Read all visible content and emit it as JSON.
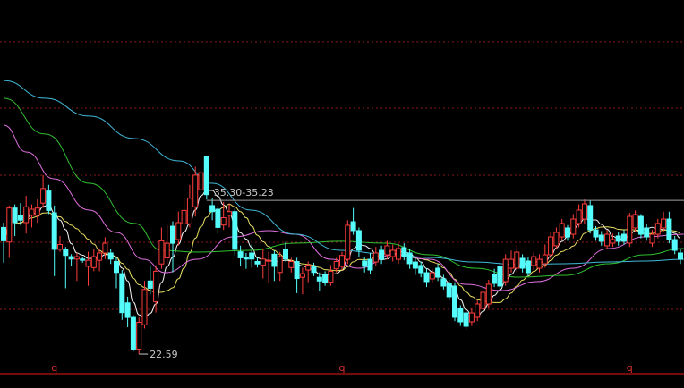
{
  "chart_data": {
    "type": "candlestick",
    "title": "",
    "xlabel": "",
    "ylabel": "",
    "ylim": [
      19.8,
      51.7
    ],
    "grid": true,
    "gridlines": [
      48.25,
      42.81,
      37.29,
      31.78,
      26.27
    ],
    "baseline": 20.98,
    "colors": {
      "up": "#ff3c3c",
      "down": "#54fcfc",
      "grid": "#8a1a1a",
      "baseline": "#9a1010",
      "label": "#c8c8c8",
      "marker": "#e03030"
    },
    "candles_format": [
      "open",
      "close",
      "high",
      "low"
    ],
    "candles": [
      [
        33.0,
        31.9,
        33.4,
        30.1
      ],
      [
        31.8,
        34.6,
        34.8,
        30.5
      ],
      [
        34.6,
        33.4,
        34.9,
        32.3
      ],
      [
        34.0,
        33.6,
        35.0,
        33.2
      ],
      [
        33.4,
        34.7,
        35.6,
        32.5
      ],
      [
        34.0,
        34.5,
        34.9,
        33.0
      ],
      [
        34.0,
        34.6,
        35.3,
        33.4
      ],
      [
        35.0,
        36.2,
        37.3,
        34.6
      ],
      [
        36.0,
        34.4,
        36.5,
        34.1
      ],
      [
        34.2,
        31.2,
        34.8,
        29.0
      ],
      [
        31.2,
        31.6,
        32.3,
        31.0
      ],
      [
        31.2,
        30.7,
        31.4,
        28.0
      ],
      [
        30.6,
        30.4,
        30.8,
        29.8
      ],
      [
        30.4,
        30.6,
        30.9,
        28.6
      ],
      [
        30.4,
        30.3,
        30.6,
        30.1
      ],
      [
        29.8,
        30.3,
        31.0,
        28.2
      ],
      [
        29.7,
        30.6,
        31.2,
        29.4
      ],
      [
        30.3,
        30.9,
        31.2,
        29.4
      ],
      [
        30.9,
        31.7,
        32.2,
        30.4
      ],
      [
        30.9,
        30.4,
        31.2,
        30.0
      ],
      [
        30.2,
        29.3,
        30.6,
        28.0
      ],
      [
        29.2,
        26.0,
        29.5,
        25.4
      ],
      [
        26.8,
        25.6,
        27.3,
        24.8
      ],
      [
        25.6,
        23.0,
        25.8,
        22.8
      ],
      [
        23.0,
        25.2,
        25.6,
        22.59
      ],
      [
        25.0,
        27.9,
        28.6,
        24.7
      ],
      [
        28.6,
        28.0,
        29.9,
        27.5
      ],
      [
        26.9,
        29.4,
        29.9,
        26.0
      ],
      [
        30.0,
        31.9,
        33.0,
        29.6
      ],
      [
        30.5,
        31.7,
        33.2,
        30.0
      ],
      [
        33.1,
        31.7,
        33.5,
        29.3
      ],
      [
        32.0,
        33.4,
        34.3,
        31.5
      ],
      [
        33.3,
        34.4,
        35.5,
        32.7
      ],
      [
        33.3,
        35.4,
        36.5,
        33.0
      ],
      [
        34.7,
        37.3,
        38.0,
        33.9
      ],
      [
        36.1,
        37.5,
        37.9,
        35.6
      ],
      [
        38.8,
        35.7,
        38.9,
        35.3
      ],
      [
        34.8,
        34.3,
        35.4,
        33.6
      ],
      [
        34.5,
        33.0,
        34.8,
        32.5
      ],
      [
        33.2,
        33.8,
        35.1,
        32.8
      ],
      [
        34.0,
        34.3,
        35.0,
        33.0
      ],
      [
        34.3,
        31.2,
        34.6,
        30.7
      ],
      [
        31.0,
        30.5,
        31.5,
        29.8
      ],
      [
        30.5,
        30.4,
        30.9,
        29.6
      ],
      [
        30.9,
        30.4,
        31.6,
        29.7
      ],
      [
        30.2,
        30.0,
        30.5,
        29.7
      ],
      [
        29.9,
        30.4,
        31.2,
        28.8
      ],
      [
        30.3,
        30.3,
        31.0,
        28.4
      ],
      [
        30.8,
        29.8,
        31.1,
        28.6
      ],
      [
        29.3,
        30.6,
        31.0,
        28.6
      ],
      [
        31.2,
        30.4,
        31.8,
        30.2
      ],
      [
        29.7,
        30.2,
        30.5,
        29.3
      ],
      [
        30.2,
        28.8,
        30.5,
        27.6
      ],
      [
        28.9,
        29.2,
        29.7,
        27.5
      ],
      [
        29.5,
        29.9,
        30.2,
        28.5
      ],
      [
        29.8,
        29.3,
        30.1,
        29.0
      ],
      [
        28.9,
        28.6,
        29.3,
        27.8
      ],
      [
        29.1,
        28.5,
        29.4,
        28.2
      ],
      [
        28.5,
        29.4,
        29.9,
        28.2
      ],
      [
        29.6,
        30.2,
        30.5,
        29.3
      ],
      [
        29.8,
        30.7,
        31.0,
        29.5
      ],
      [
        30.38,
        33.18,
        33.6,
        30.0
      ],
      [
        33.47,
        32.74,
        34.6,
        32.4
      ],
      [
        32.74,
        31.12,
        33.0,
        30.6
      ],
      [
        30.24,
        29.8,
        30.6,
        29.3
      ],
      [
        30.38,
        29.5,
        30.9,
        29.2
      ],
      [
        30.16,
        30.9,
        31.4,
        29.8
      ],
      [
        31.12,
        30.38,
        31.5,
        30.0
      ],
      [
        30.75,
        31.49,
        31.9,
        30.4
      ],
      [
        30.6,
        31.12,
        31.6,
        30.2
      ],
      [
        30.38,
        31.27,
        31.7,
        30.0
      ],
      [
        31.34,
        30.6,
        31.7,
        30.3
      ],
      [
        30.9,
        30.02,
        31.2,
        29.6
      ],
      [
        30.16,
        29.65,
        30.5,
        29.1
      ],
      [
        29.87,
        29.28,
        30.2,
        28.9
      ],
      [
        29.28,
        28.55,
        29.6,
        28.1
      ],
      [
        28.77,
        29.28,
        29.6,
        28.4
      ],
      [
        29.65,
        28.91,
        30.0,
        28.6
      ],
      [
        28.77,
        28.18,
        29.1,
        27.9
      ],
      [
        28.4,
        27.3,
        28.7,
        27.0
      ],
      [
        28.18,
        25.61,
        28.5,
        25.3
      ],
      [
        26.34,
        25.24,
        26.6,
        24.9
      ],
      [
        25.97,
        24.87,
        26.2,
        24.6
      ],
      [
        25.24,
        25.97,
        26.4,
        24.9
      ],
      [
        25.61,
        26.71,
        27.0,
        25.3
      ],
      [
        26.34,
        27.67,
        28.0,
        26.0
      ],
      [
        26.71,
        28.33,
        28.7,
        26.4
      ],
      [
        29.13,
        28.4,
        29.6,
        28.1
      ],
      [
        29.8,
        28.18,
        30.2,
        27.8
      ],
      [
        28.55,
        30.38,
        30.8,
        28.2
      ],
      [
        29.65,
        30.38,
        31.1,
        29.3
      ],
      [
        29.65,
        30.97,
        31.5,
        29.3
      ],
      [
        30.46,
        29.65,
        30.8,
        29.3
      ],
      [
        30.24,
        29.28,
        30.6,
        29.0
      ],
      [
        29.87,
        30.6,
        31.0,
        29.5
      ],
      [
        29.65,
        30.38,
        30.8,
        29.3
      ],
      [
        30.02,
        30.75,
        31.6,
        29.7
      ],
      [
        30.75,
        32.22,
        32.6,
        30.4
      ],
      [
        31.49,
        32.59,
        33.0,
        31.2
      ],
      [
        32.22,
        33.33,
        33.7,
        31.9
      ],
      [
        32.96,
        32.22,
        33.2,
        31.9
      ],
      [
        32.44,
        33.69,
        34.1,
        32.1
      ],
      [
        33.33,
        34.43,
        34.9,
        33.0
      ],
      [
        33.69,
        34.94,
        35.3,
        33.3
      ],
      [
        34.8,
        32.81,
        35.2,
        32.5
      ],
      [
        32.81,
        32.22,
        33.1,
        31.9
      ],
      [
        32.37,
        31.86,
        32.7,
        31.5
      ],
      [
        31.49,
        32.44,
        32.8,
        31.2
      ],
      [
        31.71,
        32.0,
        32.5,
        31.4
      ],
      [
        32.3,
        31.86,
        32.6,
        31.5
      ],
      [
        32.44,
        31.86,
        32.8,
        31.6
      ],
      [
        31.71,
        33.91,
        34.2,
        31.4
      ],
      [
        32.96,
        34.06,
        34.4,
        32.6
      ],
      [
        33.91,
        32.44,
        34.1,
        32.1
      ],
      [
        32.96,
        32.22,
        33.3,
        31.9
      ],
      [
        31.71,
        32.44,
        32.8,
        31.4
      ],
      [
        32.44,
        33.33,
        33.7,
        32.1
      ],
      [
        32.96,
        33.69,
        34.3,
        32.6
      ],
      [
        33.69,
        32.0,
        34.3,
        31.7
      ],
      [
        32.0,
        31.12,
        32.3,
        30.8
      ],
      [
        30.9,
        30.38,
        31.2,
        30.0
      ]
    ],
    "moving_averages": [
      {
        "period": 5,
        "color": "#f0f0f0",
        "computed": true
      },
      {
        "period": 10,
        "color": "#e8e060",
        "computed": true
      },
      {
        "color": "#e070e0",
        "points": [
          [
            0,
            41.41
          ],
          [
            4.1,
            39.2
          ],
          [
            8.9,
            37.0
          ],
          [
            15.2,
            34.43
          ],
          [
            20,
            32.59
          ],
          [
            24.8,
            30.38
          ],
          [
            28.7,
            29.28
          ],
          [
            34.3,
            30.38
          ],
          [
            40.6,
            32.22
          ],
          [
            47,
            32.74
          ],
          [
            51.7,
            32.44
          ],
          [
            58.1,
            30.38
          ],
          [
            62.9,
            29.65
          ],
          [
            69.2,
            30.75
          ],
          [
            75.6,
            30.38
          ],
          [
            81.9,
            28.33
          ],
          [
            88.3,
            27.81
          ],
          [
            94.6,
            28.55
          ],
          [
            101,
            29.65
          ],
          [
            107.3,
            31.27
          ],
          [
            113.7,
            32.22
          ],
          [
            120.6,
            32.44
          ]
        ]
      },
      {
        "color": "#30c030",
        "points": [
          [
            0,
            43.62
          ],
          [
            7.3,
            40.68
          ],
          [
            15.2,
            36.63
          ],
          [
            23.2,
            33.33
          ],
          [
            28,
            31.12
          ],
          [
            34.3,
            30.97
          ],
          [
            43.8,
            31.12
          ],
          [
            51.7,
            31.71
          ],
          [
            59.7,
            31.86
          ],
          [
            67.6,
            31.71
          ],
          [
            75.6,
            30.75
          ],
          [
            83.5,
            29.65
          ],
          [
            91.4,
            28.91
          ],
          [
            99.4,
            29.06
          ],
          [
            107.3,
            30.02
          ],
          [
            113.7,
            30.75
          ],
          [
            120.6,
            31.27
          ]
        ]
      },
      {
        "color": "#40b8d8",
        "points": [
          [
            0,
            45.08
          ],
          [
            7.3,
            43.62
          ],
          [
            15.2,
            42.15
          ],
          [
            23.2,
            40.31
          ],
          [
            31.1,
            38.47
          ],
          [
            37,
            36.63
          ],
          [
            43.8,
            34.43
          ],
          [
            51.7,
            32.44
          ],
          [
            59.7,
            31.12
          ],
          [
            67.6,
            30.83
          ],
          [
            75.6,
            30.53
          ],
          [
            83.5,
            30.16
          ],
          [
            91.4,
            29.94
          ],
          [
            99.4,
            30.02
          ],
          [
            107.3,
            30.16
          ],
          [
            113.7,
            30.24
          ],
          [
            120.6,
            30.38
          ]
        ]
      }
    ],
    "annotations": {
      "range_label": "35.30-35.23",
      "range_price": 35.23,
      "range_start_index": 36,
      "low_label": "22.59",
      "low_price": 22.59,
      "low_index": 24
    },
    "period_markers": {
      "label": "q",
      "indices": [
        9,
        60,
        111
      ]
    }
  }
}
